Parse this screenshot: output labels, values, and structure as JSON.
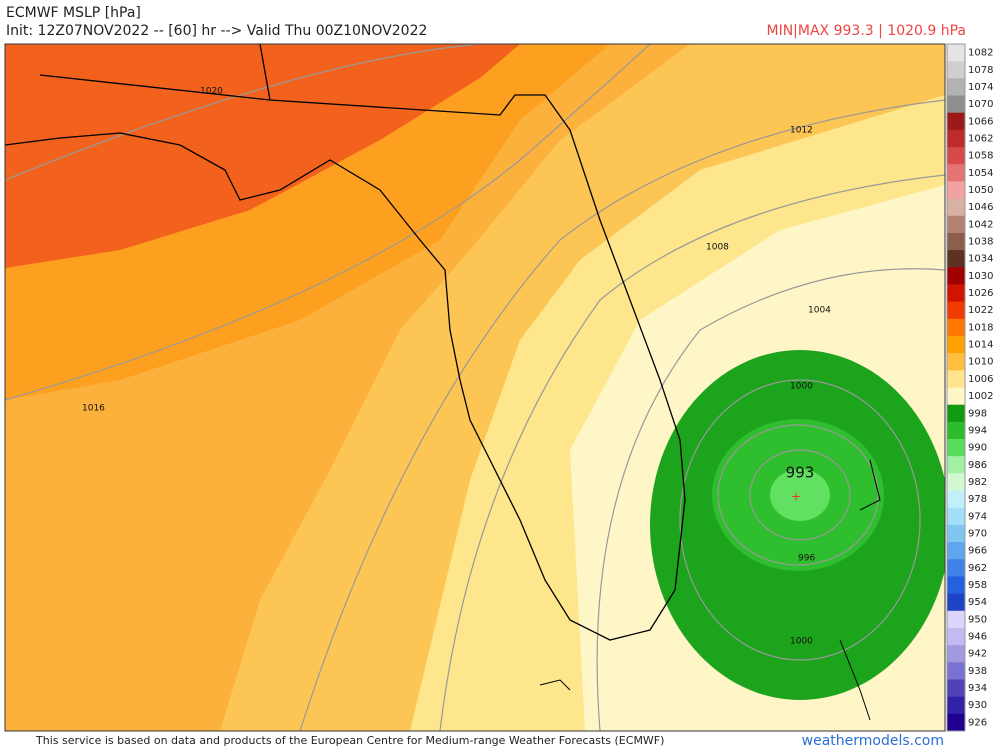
{
  "header": {
    "title": "ECMWF MSLP [hPa]",
    "init": "Init: 12Z07NOV2022 -- [60] hr --> Valid Thu 00Z10NOV2022",
    "minmax": "MIN|MAX 993.3 | 1020.9 hPa"
  },
  "map": {
    "contour_labels": [
      "1020",
      "1016",
      "1012",
      "1008",
      "1004",
      "1000",
      "996",
      "993",
      "1000"
    ]
  },
  "colorbar": {
    "levels": [
      {
        "label": "1082",
        "color": "#e4e4e4"
      },
      {
        "label": "1078",
        "color": "#cfcfcf"
      },
      {
        "label": "1074",
        "color": "#b2b2b2"
      },
      {
        "label": "1070",
        "color": "#8e8e8e"
      },
      {
        "label": "1066",
        "color": "#9c1a1a"
      },
      {
        "label": "1062",
        "color": "#bf2a2a"
      },
      {
        "label": "1058",
        "color": "#d64a4a"
      },
      {
        "label": "1054",
        "color": "#e67474"
      },
      {
        "label": "1050",
        "color": "#f2a2a2"
      },
      {
        "label": "1046",
        "color": "#d9b1a4"
      },
      {
        "label": "1042",
        "color": "#b38372"
      },
      {
        "label": "1038",
        "color": "#8c5e4c"
      },
      {
        "label": "1034",
        "color": "#5e3222"
      },
      {
        "label": "1030",
        "color": "#a00000"
      },
      {
        "label": "1026",
        "color": "#d01400"
      },
      {
        "label": "1022",
        "color": "#f03a00"
      },
      {
        "label": "1018",
        "color": "#ff7a00"
      },
      {
        "label": "1014",
        "color": "#ffa200"
      },
      {
        "label": "1010",
        "color": "#ffc040"
      },
      {
        "label": "1006",
        "color": "#ffe48c"
      },
      {
        "label": "1002",
        "color": "#fff6c8"
      },
      {
        "label": "998",
        "color": "#129a12"
      },
      {
        "label": "994",
        "color": "#2cbc2c"
      },
      {
        "label": "990",
        "color": "#5cdc5c"
      },
      {
        "label": "986",
        "color": "#a2f0a2"
      },
      {
        "label": "982",
        "color": "#d2f8d2"
      },
      {
        "label": "978",
        "color": "#c2f0fa"
      },
      {
        "label": "974",
        "color": "#a2def8"
      },
      {
        "label": "970",
        "color": "#80c6f0"
      },
      {
        "label": "966",
        "color": "#5ea6ee"
      },
      {
        "label": "962",
        "color": "#3f82e6"
      },
      {
        "label": "958",
        "color": "#2262de"
      },
      {
        "label": "954",
        "color": "#1e44c6"
      },
      {
        "label": "950",
        "color": "#dcd4fa"
      },
      {
        "label": "946",
        "color": "#c2baf0"
      },
      {
        "label": "942",
        "color": "#a29ae0"
      },
      {
        "label": "938",
        "color": "#7a72d0"
      },
      {
        "label": "934",
        "color": "#5242b8"
      },
      {
        "label": "930",
        "color": "#3222a8"
      },
      {
        "label": "926",
        "color": "#200090"
      }
    ]
  },
  "footer": {
    "credit": "This service is based on data and products of the European Centre for Medium-range Weather Forecasts (ECMWF)",
    "site": "weathermodels.com"
  }
}
